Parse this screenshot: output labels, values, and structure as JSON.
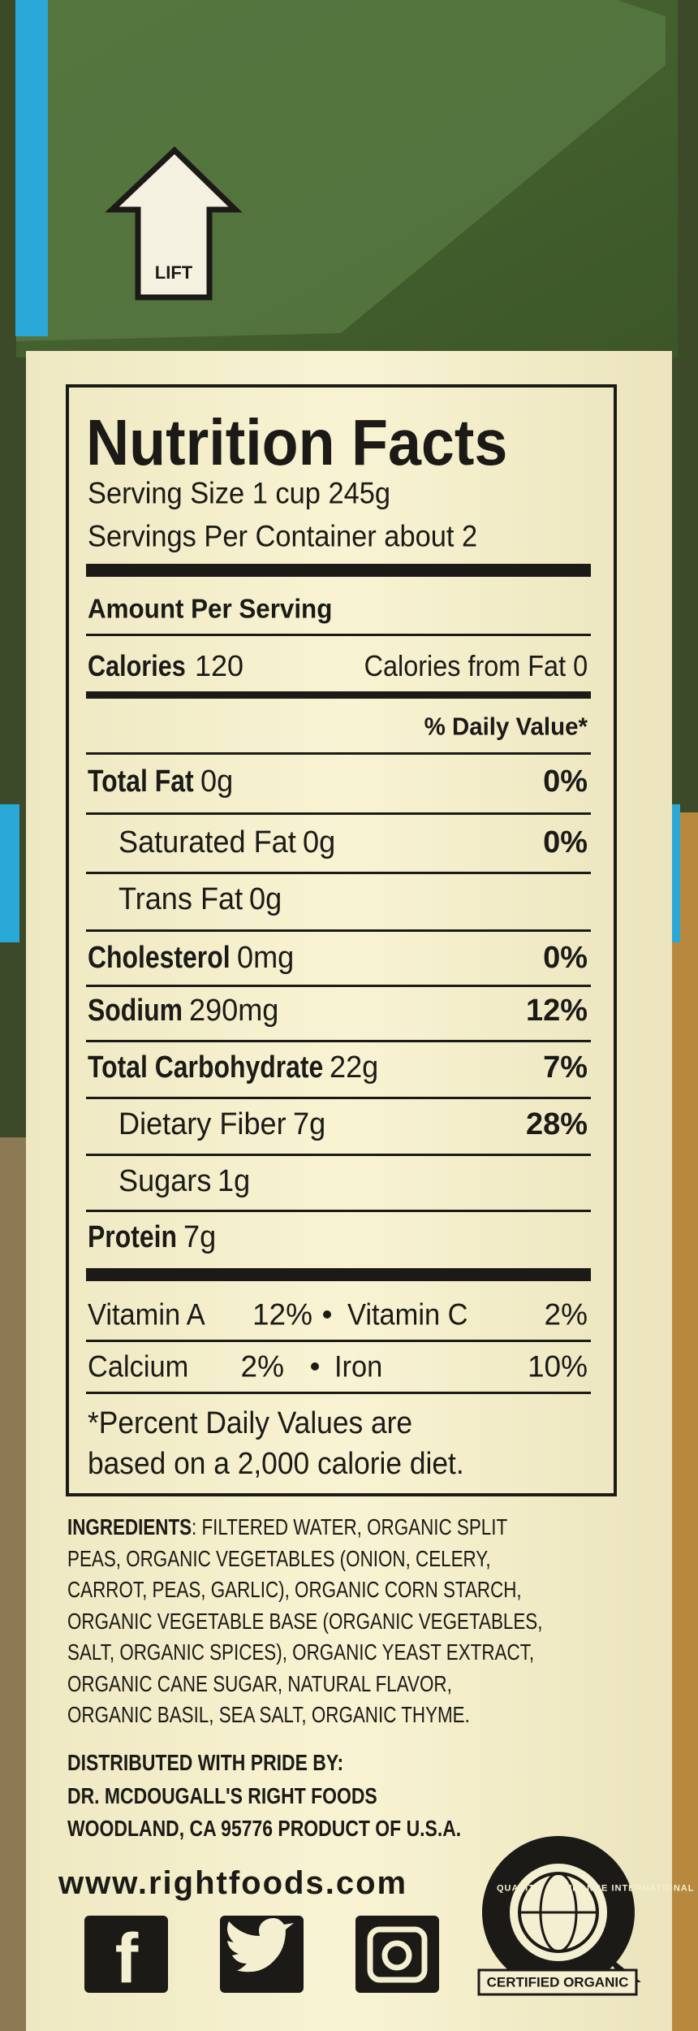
{
  "lift": "LIFT",
  "label": {
    "title": "Nutrition Facts",
    "serving_size": "Serving Size 1 cup 245g",
    "servings": "Servings Per Container about 2",
    "amount_per_serving": "Amount Per Serving",
    "calories_label": "Calories",
    "calories": "120",
    "calories_fat": "Calories from Fat 0",
    "dv_header": "% Daily Value*",
    "nutrients": [
      {
        "name": "Total Fat",
        "amount": "0g",
        "dv": "0%"
      },
      {
        "name": "Saturated Fat",
        "amount": "0g",
        "dv": "0%"
      },
      {
        "name": "Trans Fat",
        "amount": "0g"
      },
      {
        "name": "Cholesterol",
        "amount": "0mg",
        "dv": "0%"
      },
      {
        "name": "Sodium",
        "amount": "290mg",
        "dv": "12%"
      },
      {
        "name": "Total Carbohydrate",
        "amount": "22g",
        "dv": "7%"
      },
      {
        "name": "Dietary Fiber",
        "amount": "7g",
        "dv": "28%"
      },
      {
        "name": "Sugars",
        "amount": "1g"
      },
      {
        "name": "Protein",
        "amount": "7g"
      }
    ],
    "vitamins": [
      {
        "left": "Vitamin A",
        "left_value": "12%",
        "right": "Vitamin C",
        "right_value": "2%"
      },
      {
        "left": "Calcium",
        "left_value": "2%",
        "right": "Iron",
        "right_value": "10%"
      }
    ],
    "footnote": [
      "*Percent Daily Values are",
      "based on a 2,000 calorie diet."
    ]
  },
  "ingredients": {
    "label": "INGREDIENTS",
    "lines": [
      ": FILTERED WATER, ORGANIC SPLIT",
      "PEAS, ORGANIC VEGETABLES (ONION, CELERY,",
      "CARROT, PEAS, GARLIC), ORGANIC CORN STARCH,",
      "ORGANIC VEGETABLE BASE (ORGANIC VEGETABLES,",
      "SALT, ORGANIC SPICES), ORGANIC YEAST EXTRACT,",
      "ORGANIC CANE SUGAR, NATURAL FLAVOR,",
      "ORGANIC BASIL, SEA SALT, ORGANIC THYME."
    ]
  },
  "distributor": [
    "DISTRIBUTED WITH PRIDE BY:",
    "DR. MCDOUGALL'S RIGHT FOODS",
    "WOODLAND, CA 95776  PRODUCT OF U.S.A."
  ],
  "website": "www.rightfoods.com",
  "seal": {
    "ring": "QUALITY ASSURANCE INTERNATIONAL",
    "certified": "CERTIFIED ORGANIC"
  }
}
